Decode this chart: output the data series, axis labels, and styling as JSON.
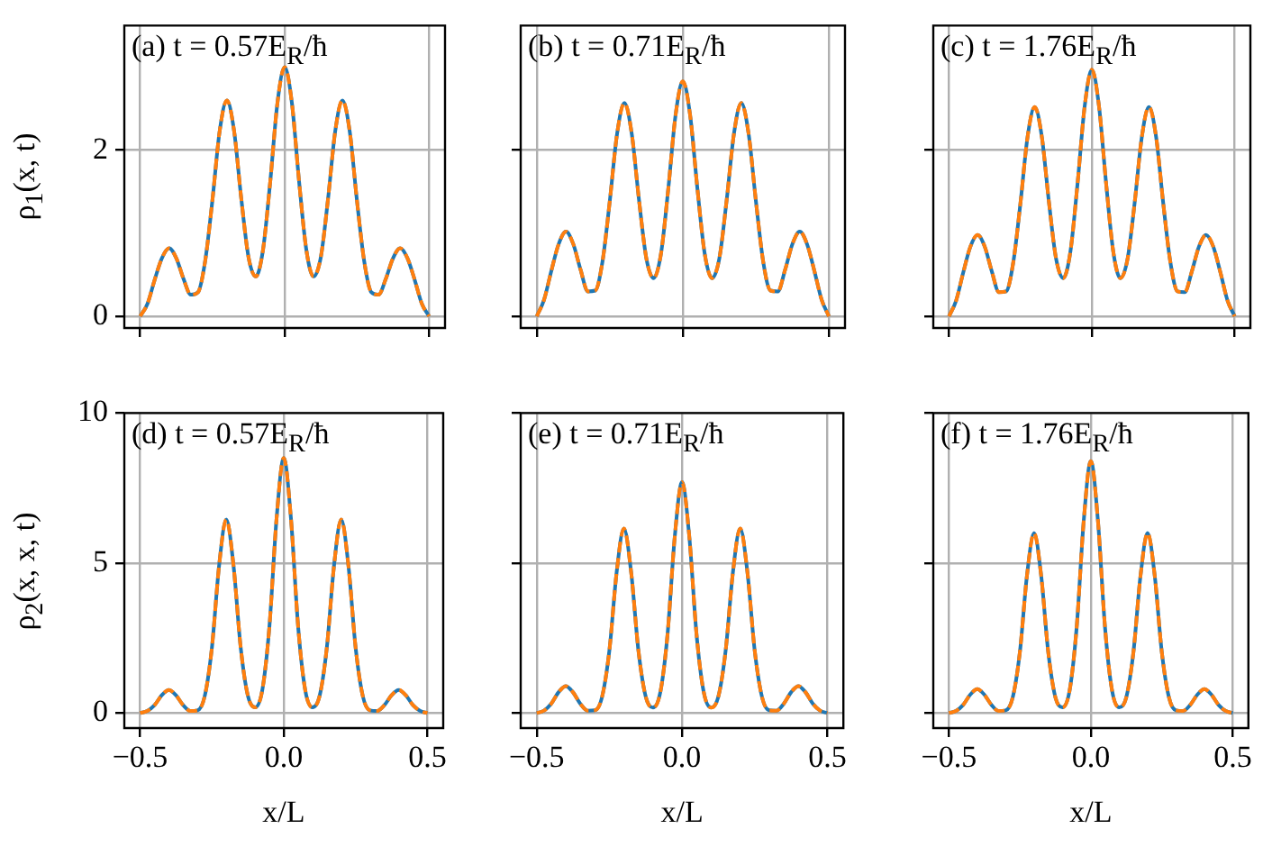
{
  "chart_data": [
    {
      "type": "line",
      "annotations": [
        "(a) t = 0.57E$_{R}$/ħ"
      ],
      "ylabel": "ρ$_{1}$(x, t)",
      "tick_labels": "y",
      "grid": true,
      "marker": "none",
      "xlim": [
        -0.555,
        0.555
      ],
      "xticks": [
        {
          "value": -0.5,
          "label": null
        },
        {
          "value": 0,
          "label": null
        },
        {
          "value": 0.5,
          "label": null
        }
      ],
      "ylim": [
        -0.14,
        3.5
      ],
      "yticks": [
        0,
        2
      ],
      "x": [
        -0.5,
        -0.475,
        -0.45,
        -0.425,
        -0.4,
        -0.375,
        -0.35,
        -0.325,
        -0.3,
        -0.275,
        -0.25,
        -0.225,
        -0.2,
        -0.175,
        -0.15,
        -0.125,
        -0.1,
        -0.075,
        -0.05,
        -0.025,
        0,
        0.025,
        0.05,
        0.075,
        0.1,
        0.125,
        0.15,
        0.175,
        0.2,
        0.225,
        0.25,
        0.275,
        0.3,
        0.325,
        0.35,
        0.375,
        0.4,
        0.425,
        0.45,
        0.475,
        0.5
      ],
      "series": [
        {
          "color": "#1f77b4",
          "line_style": "solid",
          "values": [
            0,
            0.15,
            0.44,
            0.7,
            0.82,
            0.7,
            0.45,
            0.26,
            0.29,
            0.67,
            1.4,
            2.23,
            2.6,
            2.23,
            1.41,
            0.71,
            0.48,
            0.8,
            1.62,
            2.57,
            3.0,
            2.57,
            1.62,
            0.8,
            0.48,
            0.71,
            1.41,
            2.23,
            2.6,
            2.23,
            1.4,
            0.67,
            0.29,
            0.26,
            0.45,
            0.7,
            0.82,
            0.7,
            0.44,
            0.15,
            0
          ]
        },
        {
          "color": "#ff7f0e",
          "line_style": "dashed",
          "values": [
            0,
            0.15,
            0.44,
            0.7,
            0.82,
            0.7,
            0.45,
            0.26,
            0.29,
            0.67,
            1.4,
            2.23,
            2.6,
            2.23,
            1.41,
            0.71,
            0.48,
            0.8,
            1.62,
            2.57,
            3.0,
            2.57,
            1.62,
            0.8,
            0.48,
            0.71,
            1.41,
            2.23,
            2.6,
            2.23,
            1.4,
            0.67,
            0.29,
            0.26,
            0.45,
            0.7,
            0.82,
            0.7,
            0.44,
            0.15,
            0
          ]
        }
      ]
    },
    {
      "type": "line",
      "annotations": [
        "(b) t = 0.71E$_{R}$/ħ"
      ],
      "tick_labels": false,
      "grid": true,
      "marker": "none",
      "xlim": [
        -0.555,
        0.555
      ],
      "xticks": [
        {
          "value": -0.5,
          "label": null
        },
        {
          "value": 0,
          "label": null
        },
        {
          "value": 0.5,
          "label": null
        }
      ],
      "ylim": [
        -0.14,
        3.5
      ],
      "yticks": [
        0,
        2
      ],
      "x": [
        -0.5,
        -0.475,
        -0.45,
        -0.425,
        -0.4,
        -0.375,
        -0.35,
        -0.325,
        -0.3,
        -0.275,
        -0.25,
        -0.225,
        -0.2,
        -0.175,
        -0.15,
        -0.125,
        -0.1,
        -0.075,
        -0.05,
        -0.025,
        0,
        0.025,
        0.05,
        0.075,
        0.1,
        0.125,
        0.15,
        0.175,
        0.2,
        0.225,
        0.25,
        0.275,
        0.3,
        0.325,
        0.35,
        0.375,
        0.4,
        0.425,
        0.45,
        0.475,
        0.5
      ],
      "series": [
        {
          "color": "#1f77b4",
          "line_style": "solid",
          "values": [
            0,
            0.2,
            0.55,
            0.87,
            1.02,
            0.87,
            0.56,
            0.3,
            0.31,
            0.66,
            1.39,
            2.2,
            2.57,
            2.2,
            1.4,
            0.7,
            0.46,
            0.75,
            1.53,
            2.42,
            2.83,
            2.42,
            1.53,
            0.75,
            0.46,
            0.7,
            1.4,
            2.2,
            2.57,
            2.2,
            1.39,
            0.66,
            0.31,
            0.3,
            0.56,
            0.87,
            1.02,
            0.87,
            0.55,
            0.2,
            0
          ]
        },
        {
          "color": "#ff7f0e",
          "line_style": "dashed",
          "values": [
            0,
            0.2,
            0.55,
            0.87,
            1.02,
            0.87,
            0.56,
            0.3,
            0.31,
            0.66,
            1.39,
            2.2,
            2.57,
            2.2,
            1.4,
            0.7,
            0.46,
            0.75,
            1.53,
            2.42,
            2.83,
            2.42,
            1.53,
            0.75,
            0.46,
            0.7,
            1.4,
            2.2,
            2.57,
            2.2,
            1.39,
            0.66,
            0.31,
            0.3,
            0.56,
            0.87,
            1.02,
            0.87,
            0.55,
            0.2,
            0
          ]
        }
      ]
    },
    {
      "type": "line",
      "annotations": [
        "(c) t = 1.76E$_{R}$/ħ"
      ],
      "tick_labels": false,
      "grid": true,
      "marker": "none",
      "xlim": [
        -0.555,
        0.555
      ],
      "xticks": [
        {
          "value": -0.5,
          "label": null
        },
        {
          "value": 0,
          "label": null
        },
        {
          "value": 0.5,
          "label": null
        }
      ],
      "ylim": [
        -0.14,
        3.5
      ],
      "yticks": [
        0,
        2
      ],
      "x": [
        -0.5,
        -0.475,
        -0.45,
        -0.425,
        -0.4,
        -0.375,
        -0.35,
        -0.325,
        -0.3,
        -0.275,
        -0.25,
        -0.225,
        -0.2,
        -0.175,
        -0.15,
        -0.125,
        -0.1,
        -0.075,
        -0.05,
        -0.025,
        0,
        0.025,
        0.05,
        0.075,
        0.1,
        0.125,
        0.15,
        0.175,
        0.2,
        0.225,
        0.25,
        0.275,
        0.3,
        0.325,
        0.35,
        0.375,
        0.4,
        0.425,
        0.45,
        0.475,
        0.5
      ],
      "series": [
        {
          "color": "#1f77b4",
          "line_style": "solid",
          "values": [
            0,
            0.19,
            0.53,
            0.84,
            0.98,
            0.84,
            0.54,
            0.29,
            0.3,
            0.65,
            1.36,
            2.16,
            2.52,
            2.16,
            1.37,
            0.69,
            0.46,
            0.78,
            1.6,
            2.53,
            2.97,
            2.53,
            1.6,
            0.78,
            0.46,
            0.69,
            1.37,
            2.16,
            2.52,
            2.16,
            1.36,
            0.65,
            0.3,
            0.29,
            0.54,
            0.84,
            0.98,
            0.84,
            0.53,
            0.19,
            0
          ]
        },
        {
          "color": "#ff7f0e",
          "line_style": "dashed",
          "values": [
            0,
            0.19,
            0.53,
            0.84,
            0.98,
            0.84,
            0.54,
            0.29,
            0.3,
            0.65,
            1.36,
            2.16,
            2.52,
            2.16,
            1.37,
            0.69,
            0.46,
            0.78,
            1.6,
            2.53,
            2.97,
            2.53,
            1.6,
            0.78,
            0.46,
            0.69,
            1.37,
            2.16,
            2.52,
            2.16,
            1.36,
            0.65,
            0.3,
            0.29,
            0.54,
            0.84,
            0.98,
            0.84,
            0.53,
            0.19,
            0
          ]
        }
      ]
    },
    {
      "type": "line",
      "annotations": [
        "(d) t = 0.57E$_{R}$/ħ"
      ],
      "ylabel": "ρ$_{2}$(x, x, t)",
      "xlabel": "x/L",
      "grid": true,
      "marker": "none",
      "xlim": [
        -0.555,
        0.555
      ],
      "xticks": [
        {
          "value": -0.5,
          "label": "−0.5"
        },
        {
          "value": 0,
          "label": "0.0"
        },
        {
          "value": 0.5,
          "label": "0.5"
        }
      ],
      "ylim": [
        -0.5,
        10
      ],
      "yticks": [
        0,
        5,
        10
      ],
      "x": [
        -0.5,
        -0.475,
        -0.45,
        -0.425,
        -0.4,
        -0.375,
        -0.35,
        -0.325,
        -0.3,
        -0.275,
        -0.25,
        -0.225,
        -0.2,
        -0.175,
        -0.15,
        -0.125,
        -0.1,
        -0.075,
        -0.05,
        -0.025,
        0,
        0.025,
        0.05,
        0.075,
        0.1,
        0.125,
        0.15,
        0.175,
        0.2,
        0.225,
        0.25,
        0.275,
        0.3,
        0.325,
        0.35,
        0.375,
        0.4,
        0.425,
        0.45,
        0.475,
        0.5
      ],
      "series": [
        {
          "color": "#1f77b4",
          "line_style": "solid",
          "values": [
            0,
            0.07,
            0.26,
            0.59,
            0.77,
            0.59,
            0.26,
            0.07,
            0.09,
            0.57,
            2.19,
            4.92,
            6.45,
            4.92,
            2.19,
            0.58,
            0.19,
            0.75,
            2.88,
            6.49,
            8.5,
            6.49,
            2.88,
            0.75,
            0.19,
            0.58,
            2.19,
            4.92,
            6.45,
            4.92,
            2.19,
            0.57,
            0.09,
            0.07,
            0.26,
            0.59,
            0.77,
            0.59,
            0.26,
            0.07,
            0
          ]
        },
        {
          "color": "#ff7f0e",
          "line_style": "dashed",
          "values": [
            0,
            0.07,
            0.26,
            0.59,
            0.77,
            0.59,
            0.26,
            0.07,
            0.09,
            0.57,
            2.19,
            4.92,
            6.45,
            4.92,
            2.19,
            0.58,
            0.19,
            0.75,
            2.88,
            6.49,
            8.5,
            6.49,
            2.88,
            0.75,
            0.19,
            0.58,
            2.19,
            4.92,
            6.45,
            4.92,
            2.19,
            0.57,
            0.09,
            0.07,
            0.26,
            0.59,
            0.77,
            0.59,
            0.26,
            0.07,
            0
          ]
        }
      ]
    },
    {
      "type": "line",
      "annotations": [
        "(e) t = 0.71E$_{R}$/ħ"
      ],
      "xlabel": "x/L",
      "tick_labels": "x",
      "grid": true,
      "marker": "none",
      "xlim": [
        -0.555,
        0.555
      ],
      "xticks": [
        {
          "value": -0.5,
          "label": "−0.5"
        },
        {
          "value": 0,
          "label": "0.0"
        },
        {
          "value": 0.5,
          "label": "0.5"
        }
      ],
      "ylim": [
        -0.5,
        10
      ],
      "yticks": [
        0,
        5,
        10
      ],
      "x": [
        -0.5,
        -0.475,
        -0.45,
        -0.425,
        -0.4,
        -0.375,
        -0.35,
        -0.325,
        -0.3,
        -0.275,
        -0.25,
        -0.225,
        -0.2,
        -0.175,
        -0.15,
        -0.125,
        -0.1,
        -0.075,
        -0.05,
        -0.025,
        0,
        0.025,
        0.05,
        0.075,
        0.1,
        0.125,
        0.15,
        0.175,
        0.2,
        0.225,
        0.25,
        0.275,
        0.3,
        0.325,
        0.35,
        0.375,
        0.4,
        0.425,
        0.45,
        0.475,
        0.5
      ],
      "series": [
        {
          "color": "#1f77b4",
          "line_style": "solid",
          "values": [
            0,
            0.08,
            0.31,
            0.69,
            0.9,
            0.69,
            0.31,
            0.08,
            0.09,
            0.54,
            2.08,
            4.69,
            6.15,
            4.69,
            2.08,
            0.55,
            0.18,
            0.68,
            2.61,
            5.88,
            7.7,
            5.88,
            2.61,
            0.68,
            0.18,
            0.55,
            2.08,
            4.69,
            6.15,
            4.69,
            2.08,
            0.54,
            0.09,
            0.08,
            0.31,
            0.69,
            0.9,
            0.69,
            0.31,
            0.08,
            0
          ]
        },
        {
          "color": "#ff7f0e",
          "line_style": "dashed",
          "values": [
            0,
            0.08,
            0.31,
            0.69,
            0.9,
            0.69,
            0.31,
            0.08,
            0.09,
            0.54,
            2.08,
            4.69,
            6.15,
            4.69,
            2.08,
            0.55,
            0.18,
            0.68,
            2.61,
            5.88,
            7.7,
            5.88,
            2.61,
            0.68,
            0.18,
            0.55,
            2.08,
            4.69,
            6.15,
            4.69,
            2.08,
            0.54,
            0.09,
            0.08,
            0.31,
            0.69,
            0.9,
            0.69,
            0.31,
            0.08,
            0
          ]
        }
      ]
    },
    {
      "type": "line",
      "annotations": [
        "(f) t = 1.76E$_{R}$/ħ"
      ],
      "xlabel": "x/L",
      "tick_labels": "x",
      "grid": true,
      "marker": "none",
      "xlim": [
        -0.555,
        0.555
      ],
      "xticks": [
        {
          "value": -0.5,
          "label": "−0.5"
        },
        {
          "value": 0,
          "label": "0.0"
        },
        {
          "value": 0.5,
          "label": "0.5"
        }
      ],
      "ylim": [
        -0.5,
        10
      ],
      "yticks": [
        0,
        5,
        10
      ],
      "x": [
        -0.5,
        -0.475,
        -0.45,
        -0.425,
        -0.4,
        -0.375,
        -0.35,
        -0.325,
        -0.3,
        -0.275,
        -0.25,
        -0.225,
        -0.2,
        -0.175,
        -0.15,
        -0.125,
        -0.1,
        -0.075,
        -0.05,
        -0.025,
        0,
        0.025,
        0.05,
        0.075,
        0.1,
        0.125,
        0.15,
        0.175,
        0.2,
        0.225,
        0.25,
        0.275,
        0.3,
        0.325,
        0.35,
        0.375,
        0.4,
        0.425,
        0.45,
        0.475,
        0.5
      ],
      "series": [
        {
          "color": "#1f77b4",
          "line_style": "solid",
          "values": [
            0,
            0.07,
            0.27,
            0.61,
            0.8,
            0.61,
            0.27,
            0.07,
            0.09,
            0.53,
            2.03,
            4.58,
            6.0,
            4.58,
            2.03,
            0.53,
            0.19,
            0.74,
            2.85,
            6.41,
            8.4,
            6.41,
            2.85,
            0.74,
            0.19,
            0.53,
            2.03,
            4.58,
            6.0,
            4.58,
            2.03,
            0.53,
            0.09,
            0.07,
            0.27,
            0.61,
            0.8,
            0.61,
            0.27,
            0.07,
            0
          ]
        },
        {
          "color": "#ff7f0e",
          "line_style": "dashed",
          "values": [
            0,
            0.07,
            0.27,
            0.61,
            0.8,
            0.61,
            0.27,
            0.07,
            0.09,
            0.53,
            2.03,
            4.58,
            6.0,
            4.58,
            2.03,
            0.53,
            0.19,
            0.74,
            2.85,
            6.41,
            8.4,
            6.41,
            2.85,
            0.74,
            0.19,
            0.53,
            2.03,
            4.58,
            6.0,
            4.58,
            2.03,
            0.53,
            0.09,
            0.07,
            0.27,
            0.61,
            0.8,
            0.61,
            0.27,
            0.07,
            0
          ]
        }
      ]
    }
  ]
}
